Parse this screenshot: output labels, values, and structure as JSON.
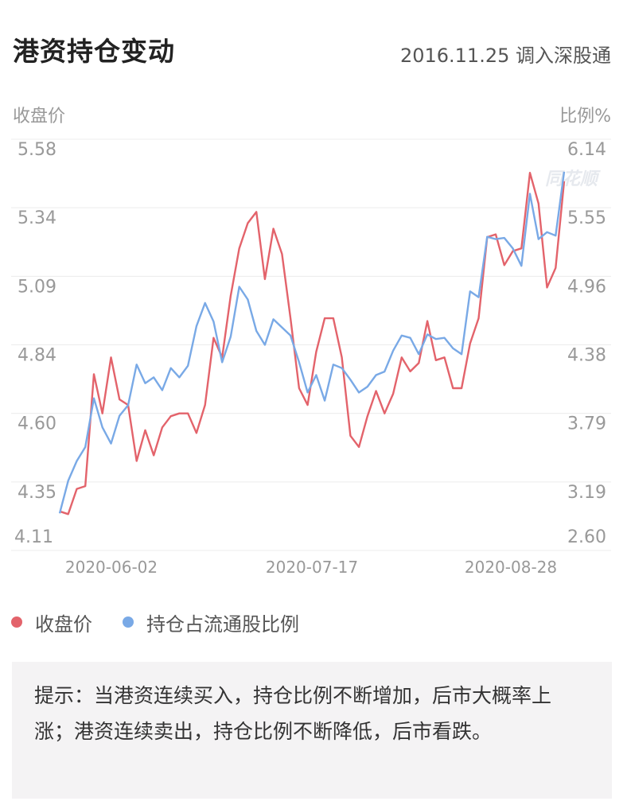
{
  "header": {
    "title": "港资持仓变动",
    "subtitle": "2016.11.25 调入深股通"
  },
  "axes": {
    "left_title": "收盘价",
    "right_title": "比例%"
  },
  "legend": {
    "items": [
      {
        "label": "收盘价",
        "color": "#e3636b"
      },
      {
        "label": "持仓占流通股比例",
        "color": "#79a9e6"
      }
    ]
  },
  "watermark": "同花顺",
  "tip": {
    "text": "提示：当港资连续买入，持仓比例不断增加，后市大概率上涨；港资连续卖出，持仓比例不断降低，后市看跌。"
  },
  "colors": {
    "price_line": "#e3636b",
    "ratio_line": "#79a9e6",
    "grid": "#ececec",
    "tick_text": "#999999"
  },
  "chart_data": {
    "type": "line",
    "title": "港资持仓变动",
    "subtitle": "2016.11.25 调入深股通",
    "xlabel": "",
    "ylabel": "收盘价",
    "y2label": "比例%",
    "x_tick_labels": [
      "2020-06-02",
      "2020-07-17",
      "2020-08-28"
    ],
    "x_tick_indices": [
      9,
      30,
      49
    ],
    "ylim": [
      4.11,
      5.58
    ],
    "y_ticks": [
      5.58,
      5.34,
      5.09,
      4.84,
      4.6,
      4.35,
      4.11
    ],
    "y2lim": [
      2.6,
      6.14
    ],
    "y2_ticks": [
      6.14,
      5.55,
      4.96,
      4.38,
      3.79,
      3.19,
      2.6
    ],
    "grid": true,
    "legend_position": "bottom-left",
    "series": [
      {
        "name": "收盘价",
        "axis": "left",
        "color": "#e3636b",
        "values": [
          4.25,
          4.24,
          4.33,
          4.34,
          4.74,
          4.6,
          4.8,
          4.65,
          4.63,
          4.43,
          4.54,
          4.45,
          4.55,
          4.59,
          4.6,
          4.6,
          4.53,
          4.63,
          4.87,
          4.8,
          5.02,
          5.19,
          5.28,
          5.32,
          5.08,
          5.26,
          5.17,
          4.94,
          4.69,
          4.63,
          4.82,
          4.94,
          4.94,
          4.8,
          4.52,
          4.48,
          4.59,
          4.68,
          4.6,
          4.67,
          4.8,
          4.75,
          4.78,
          4.93,
          4.79,
          4.8,
          4.69,
          4.69,
          4.85,
          4.94,
          5.23,
          5.24,
          5.13,
          5.18,
          5.19,
          5.46,
          5.35,
          5.05,
          5.12,
          5.43
        ]
      },
      {
        "name": "持仓占流通股比例",
        "axis": "right",
        "color": "#79a9e6",
        "values": [
          2.92,
          3.2,
          3.37,
          3.49,
          3.91,
          3.66,
          3.52,
          3.76,
          3.85,
          4.2,
          4.04,
          4.09,
          3.98,
          4.17,
          4.09,
          4.19,
          4.53,
          4.73,
          4.57,
          4.22,
          4.44,
          4.87,
          4.76,
          4.49,
          4.37,
          4.59,
          4.52,
          4.45,
          4.22,
          3.96,
          4.11,
          3.89,
          4.2,
          4.17,
          4.07,
          3.96,
          4.01,
          4.11,
          4.14,
          4.32,
          4.45,
          4.43,
          4.29,
          4.46,
          4.42,
          4.43,
          4.34,
          4.29,
          4.83,
          4.78,
          5.3,
          5.28,
          5.29,
          5.2,
          5.05,
          5.67,
          5.28,
          5.34,
          5.31,
          5.86
        ]
      }
    ]
  }
}
